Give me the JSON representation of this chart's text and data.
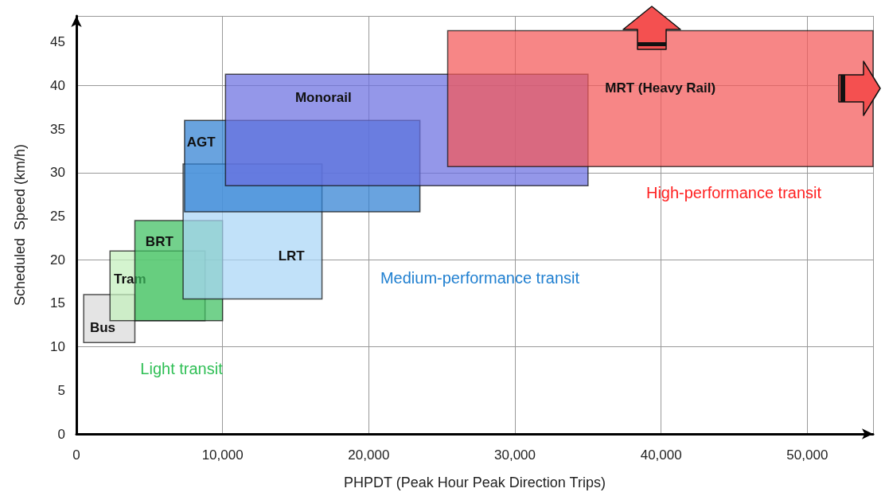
{
  "chart_data": {
    "type": "area",
    "xlabel": "PHPDT (Peak Hour Peak Direction Trips)",
    "ylabel": "Scheduled  Speed (km/h)",
    "xlim": [
      0,
      54500
    ],
    "ylim": [
      0,
      48
    ],
    "xticks": [
      0,
      {
        "value": 10000,
        "label": "10,000"
      },
      {
        "value": 20000,
        "label": "20,000"
      },
      {
        "value": 30000,
        "label": "30,000"
      },
      {
        "value": 40000,
        "label": "40,000"
      },
      {
        "value": 50000,
        "label": "50,000"
      }
    ],
    "yticks": [
      0,
      5,
      10,
      15,
      20,
      25,
      30,
      35,
      40,
      45
    ],
    "grid": true,
    "legend": false,
    "series": [
      {
        "name": "Bus",
        "color": "#d9d9d9",
        "x": [
          500,
          4000,
          4000,
          500,
          500
        ],
        "values": [
          10.5,
          10.5,
          16,
          16,
          10.5
        ]
      },
      {
        "name": "Tram",
        "color": "#c3f0bd",
        "x": [
          2300,
          8800,
          8800,
          2300,
          2300
        ],
        "values": [
          13,
          13,
          21,
          21,
          13
        ]
      },
      {
        "name": "BRT",
        "color": "#3dbf5f",
        "x": [
          4000,
          10000,
          10000,
          4000,
          4000
        ],
        "values": [
          13,
          13,
          24.5,
          24.5,
          13
        ]
      },
      {
        "name": "LRT",
        "color": "#a9d6f7",
        "x": [
          7300,
          16800,
          16800,
          7300,
          7300
        ],
        "values": [
          15.5,
          15.5,
          31,
          31,
          15.5
        ]
      },
      {
        "name": "AGT",
        "color": "#2f7fd3",
        "x": [
          7400,
          23500,
          23500,
          7400,
          7400
        ],
        "values": [
          25.5,
          25.5,
          36,
          36,
          25.5
        ]
      },
      {
        "name": "Monorail",
        "color": "#6b6fe0",
        "x": [
          10200,
          35000,
          35000,
          10200,
          10200
        ],
        "values": [
          28.5,
          28.5,
          41.3,
          41.3,
          28.5
        ]
      },
      {
        "name": "MRT (Heavy Rail)",
        "color": "#f45858",
        "x": [
          25400,
          54500,
          54500,
          25400,
          25400
        ],
        "values": [
          30.7,
          30.7,
          46.3,
          46.3,
          30.7
        ]
      }
    ],
    "annotations": [
      "Light transit",
      "Medium-performance transit",
      "High-performance transit"
    ]
  }
}
